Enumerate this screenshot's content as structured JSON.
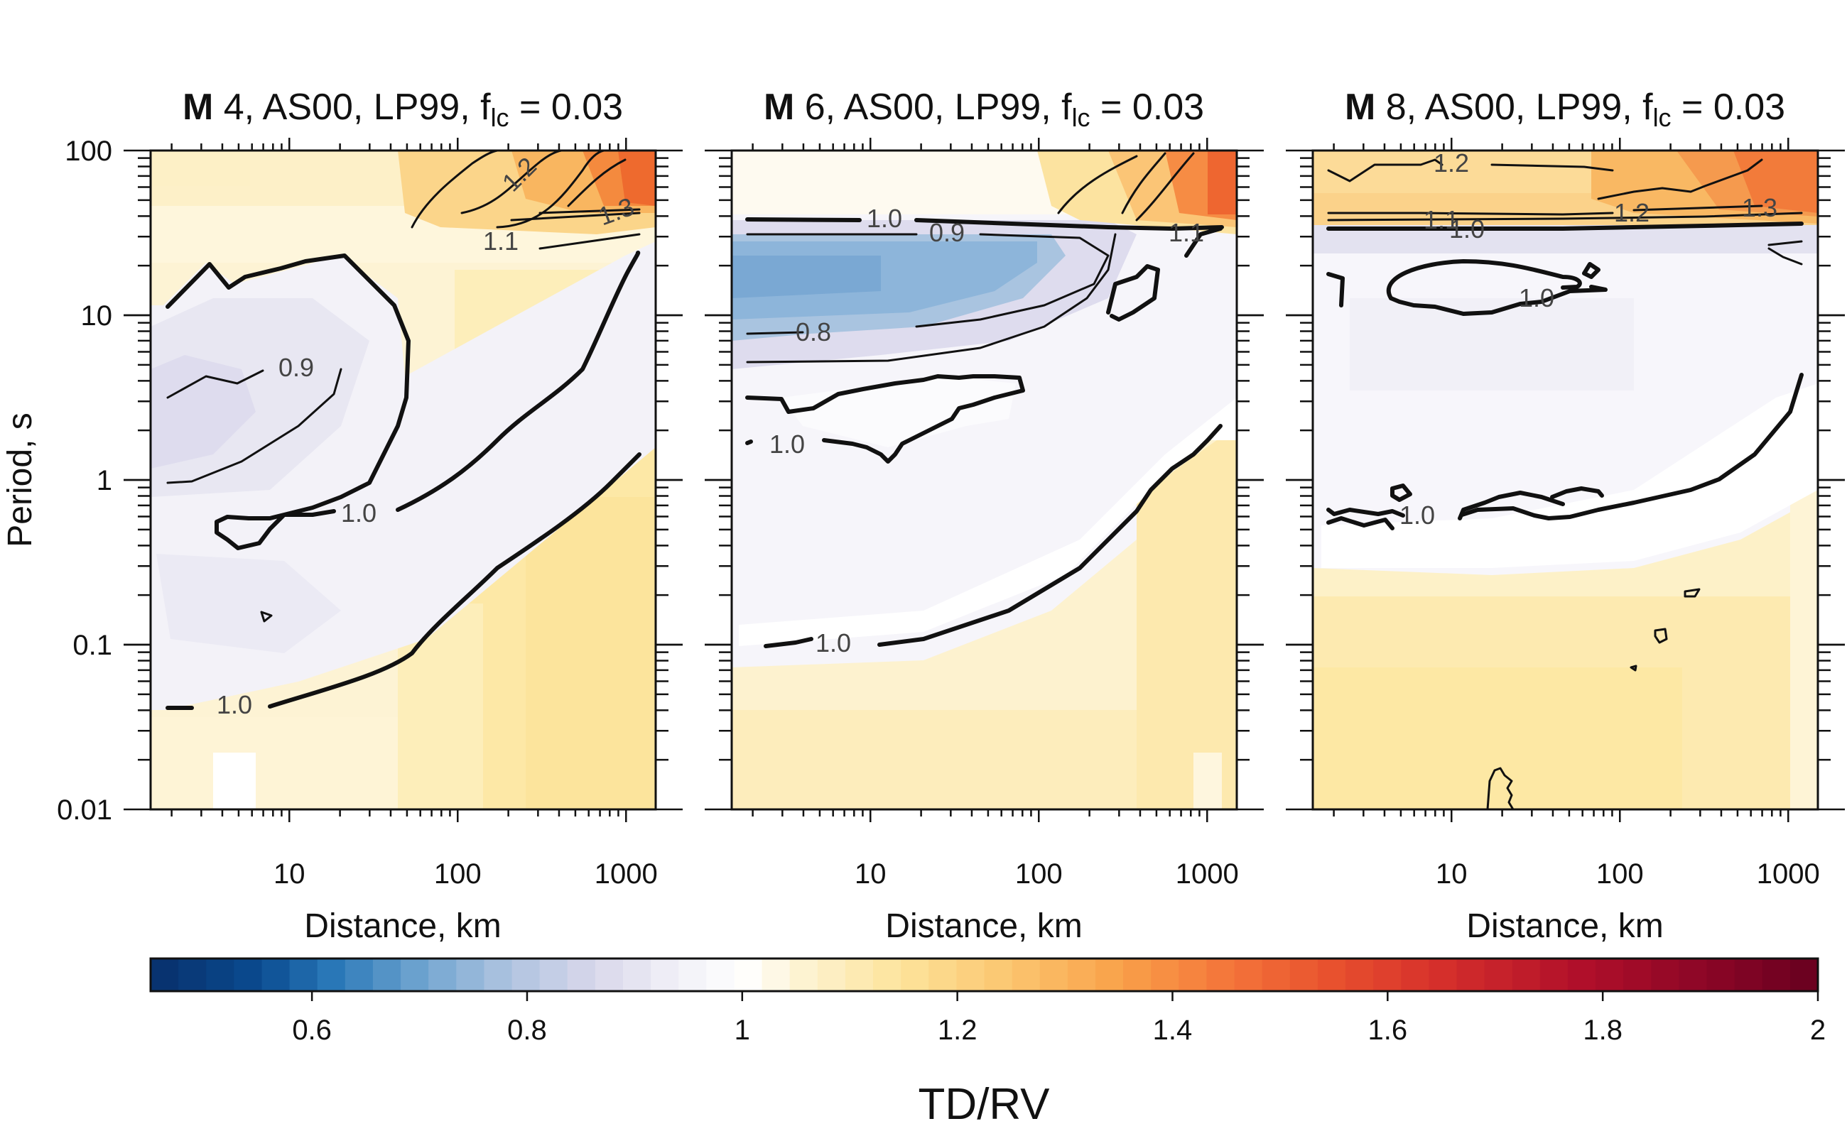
{
  "chart_data": {
    "type": "heatmap",
    "panels": [
      {
        "title_bold": "M",
        "title_rest": " 4, AS00, LP99, f",
        "title_sub": "lc",
        "title_tail": " = 0.03",
        "xlabel": "Distance, km",
        "ylabel": "Period, s",
        "contour_labels": [
          "1.2",
          "1.3",
          "1.1",
          "0.9",
          "1.0",
          "1.0"
        ]
      },
      {
        "title_bold": "M",
        "title_rest": " 6, AS00, LP99, f",
        "title_sub": "lc",
        "title_tail": " = 0.03",
        "xlabel": "Distance, km",
        "ylabel": "",
        "contour_labels": [
          "1.0",
          "0.9",
          "0.8",
          "1.1",
          "1.0",
          "1.0"
        ]
      },
      {
        "title_bold": "M",
        "title_rest": " 8, AS00, LP99, f",
        "title_sub": "lc",
        "title_tail": " = 0.03",
        "xlabel": "Distance, km",
        "ylabel": "",
        "contour_labels": [
          "1.2",
          "1.1",
          "1.0",
          "1.2",
          "1.3",
          "1.0",
          "1.0"
        ]
      }
    ],
    "x_scale": "log",
    "y_scale": "log",
    "xlim": [
      1.5,
      1500
    ],
    "ylim": [
      0.01,
      100
    ],
    "x_ticks": [
      10,
      100,
      1000
    ],
    "x_tick_labels": [
      "10",
      "100",
      "1000"
    ],
    "y_ticks": [
      0.01,
      0.1,
      1,
      10,
      100
    ],
    "y_tick_labels": [
      "0.01",
      "0.1",
      "1",
      "10",
      "100"
    ],
    "colorbar": {
      "label": "TD/RV",
      "range": [
        0.45,
        2
      ],
      "ticks": [
        0.6,
        0.8,
        1,
        1.2,
        1.4,
        1.6,
        1.8,
        2
      ],
      "tick_labels": [
        "0.6",
        "0.8",
        "1",
        "1.2",
        "1.4",
        "1.6",
        "1.8",
        "2"
      ],
      "low_color": "#08306b",
      "mid_color": "#ffffff",
      "high_color": "#67001f"
    },
    "grid": false
  }
}
